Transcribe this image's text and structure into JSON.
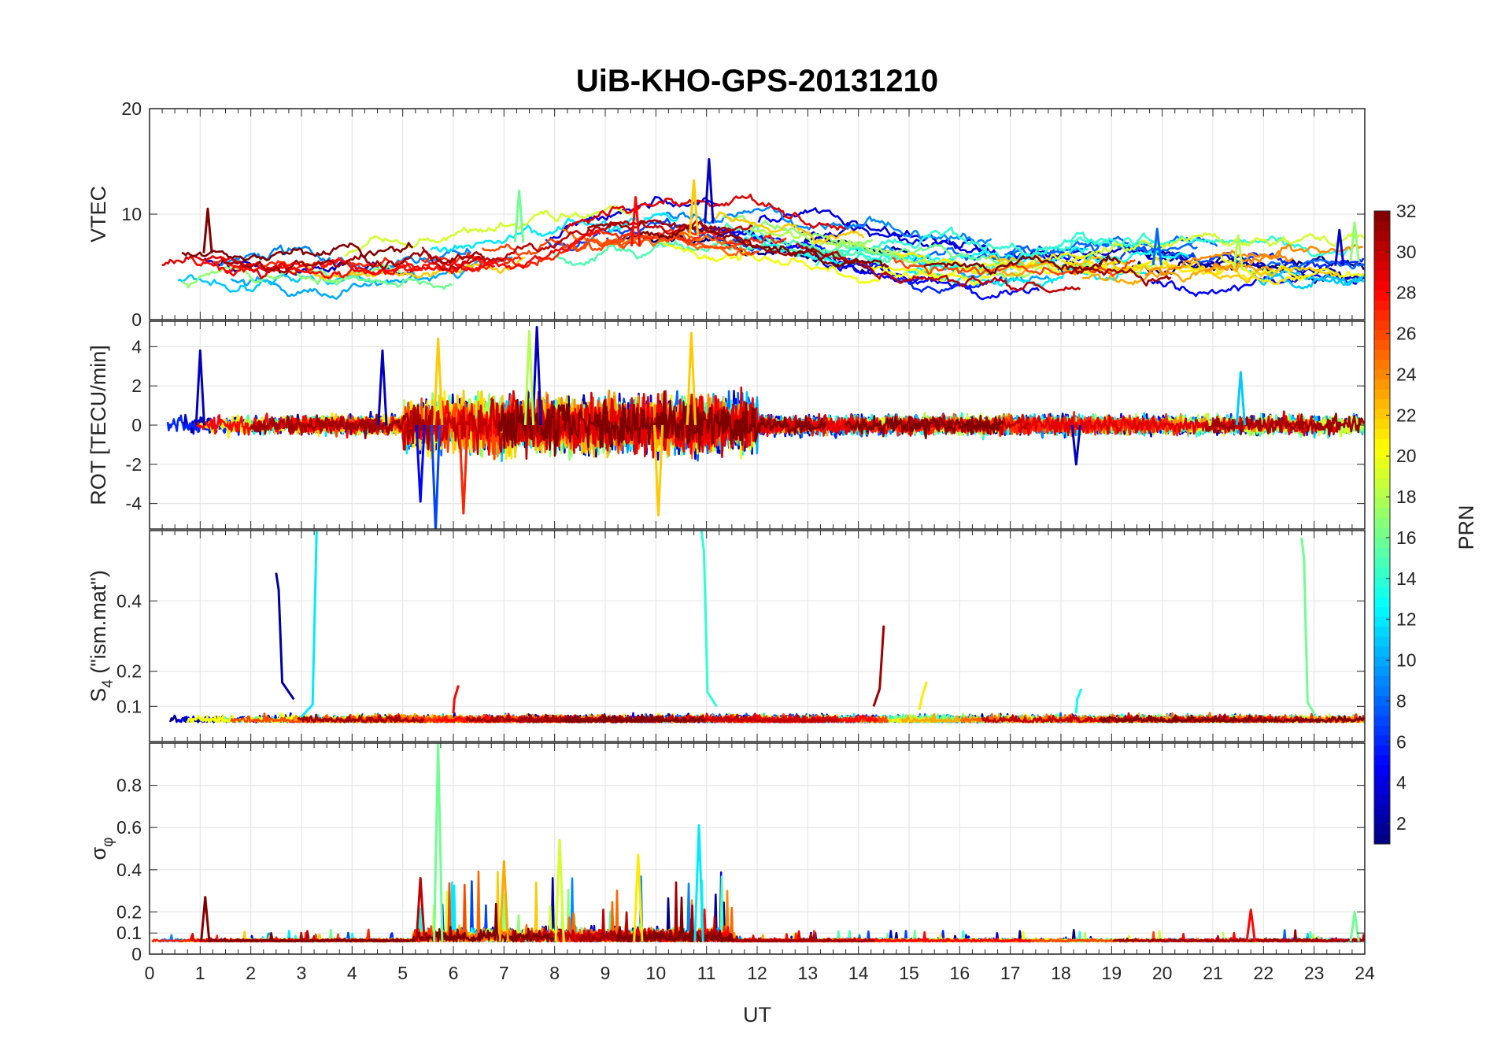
{
  "title": "UiB-KHO-GPS-20131210",
  "chart_data": [
    {
      "type": "line",
      "panel": "vtec",
      "ylabel": "VTEC",
      "xlim": [
        0,
        24
      ],
      "ylim": [
        0,
        20
      ],
      "yticks": [
        0,
        10,
        20
      ],
      "grid": true,
      "series_note": "",
      "events": [
        {
          "prn": 32,
          "x": 1.15,
          "y": 10.5
        },
        {
          "prn": 3,
          "x": 11.05,
          "y": 15.2
        },
        {
          "prn": 22,
          "x": 10.75,
          "y": 13.2
        },
        {
          "prn": 16,
          "x": 7.3,
          "y": 12.2
        },
        {
          "prn": 28,
          "x": 9.6,
          "y": 11.6
        },
        {
          "prn": 8,
          "x": 19.9,
          "y": 8.6
        },
        {
          "prn": 4,
          "x": 23.5,
          "y": 8.5
        },
        {
          "prn": 18,
          "x": 21.5,
          "y": 8.0
        },
        {
          "prn": 17,
          "x": 23.8,
          "y": 9.2
        }
      ]
    },
    {
      "type": "line",
      "panel": "rot",
      "ylabel": "ROT [TECU/min]",
      "xlim": [
        0,
        24
      ],
      "ylim": [
        -5.3,
        5.3
      ],
      "yticks": [
        -4,
        -2,
        0,
        2,
        4
      ],
      "grid": true,
      "events": [
        {
          "prn": 3,
          "x": 7.65,
          "y": 5.0
        },
        {
          "prn": 18,
          "x": 7.5,
          "y": 4.8
        },
        {
          "prn": 22,
          "x": 10.7,
          "y": 4.7
        },
        {
          "prn": 22,
          "x": 5.7,
          "y": 4.4
        },
        {
          "prn": 3,
          "x": 1.0,
          "y": 3.8
        },
        {
          "prn": 3,
          "x": 4.6,
          "y": 3.8
        },
        {
          "prn": 7,
          "x": 5.65,
          "y": -5.4
        },
        {
          "prn": 27,
          "x": 6.2,
          "y": -4.5
        },
        {
          "prn": 22,
          "x": 10.05,
          "y": -4.6
        },
        {
          "prn": 5,
          "x": 5.35,
          "y": -3.9
        },
        {
          "prn": 11,
          "x": 21.55,
          "y": 2.7
        },
        {
          "prn": 3,
          "x": 18.3,
          "y": -2.0
        }
      ]
    },
    {
      "type": "line",
      "panel": "s4",
      "ylabel": "S4 (\"ism.mat\")",
      "ylabel_main": "S",
      "ylabel_sub": "4",
      "ylabel_rest": " (\"ism.mat\")",
      "xlim": [
        0,
        24
      ],
      "ylim": [
        0,
        0.6
      ],
      "yticks": [
        0.1,
        0.2,
        0.4
      ],
      "ytick_labels": [
        "0.1",
        "0.2",
        "0.4"
      ],
      "grid": true,
      "events": [
        {
          "prn": 2,
          "x": 2.5,
          "y": 0.48,
          "decay_to": 0.12,
          "end": 2.85
        },
        {
          "prn": 12,
          "x": 3.3,
          "y": 0.6,
          "rise_from": 0.07,
          "start": 3.0
        },
        {
          "prn": 14,
          "x": 10.9,
          "y": 0.6,
          "decay_to": 0.1,
          "end": 11.2
        },
        {
          "prn": 16,
          "x": 22.75,
          "y": 0.58,
          "decay_to": 0.08,
          "end": 23.0
        },
        {
          "prn": 31,
          "x": 14.5,
          "y": 0.33,
          "rise_from": 0.1,
          "start": 14.3
        },
        {
          "prn": 21,
          "x": 15.35,
          "y": 0.17,
          "rise_from": 0.09,
          "start": 15.2
        },
        {
          "prn": 28,
          "x": 6.1,
          "y": 0.16,
          "rise_from": 0.08,
          "start": 6.0
        },
        {
          "prn": 13,
          "x": 18.4,
          "y": 0.15,
          "rise_from": 0.08,
          "start": 18.3
        }
      ]
    },
    {
      "type": "line",
      "panel": "sigma_phi",
      "ylabel": "σ φ",
      "ylabel_main": "σ",
      "ylabel_sub": "φ",
      "xlabel": "UT",
      "xlim": [
        0,
        24
      ],
      "ylim": [
        0,
        1
      ],
      "yticks": [
        0,
        0.1,
        0.2,
        0.4,
        0.6,
        0.8
      ],
      "ytick_labels": [
        "0",
        "0.1",
        "0.2",
        "0.4",
        "0.6",
        "0.8"
      ],
      "xticks": [
        0,
        1,
        2,
        3,
        4,
        5,
        6,
        7,
        8,
        9,
        10,
        11,
        12,
        13,
        14,
        15,
        16,
        17,
        18,
        19,
        20,
        21,
        22,
        23,
        24
      ],
      "grid": true,
      "events": [
        {
          "prn": 16,
          "x": 5.7,
          "y": 1.0
        },
        {
          "prn": 12,
          "x": 10.85,
          "y": 0.61
        },
        {
          "prn": 19,
          "x": 8.1,
          "y": 0.54
        },
        {
          "prn": 21,
          "x": 9.65,
          "y": 0.47
        },
        {
          "prn": 23,
          "x": 7.0,
          "y": 0.44
        },
        {
          "prn": 32,
          "x": 1.1,
          "y": 0.27
        },
        {
          "prn": 30,
          "x": 5.35,
          "y": 0.36
        },
        {
          "prn": 28,
          "x": 21.75,
          "y": 0.21
        },
        {
          "prn": 16,
          "x": 23.8,
          "y": 0.2
        }
      ]
    }
  ],
  "colorbar": {
    "label": "PRN",
    "range": [
      1,
      32
    ],
    "ticks": [
      2,
      4,
      6,
      8,
      10,
      12,
      14,
      16,
      18,
      20,
      22,
      24,
      26,
      28,
      30,
      32
    ],
    "colormap": "jet"
  }
}
